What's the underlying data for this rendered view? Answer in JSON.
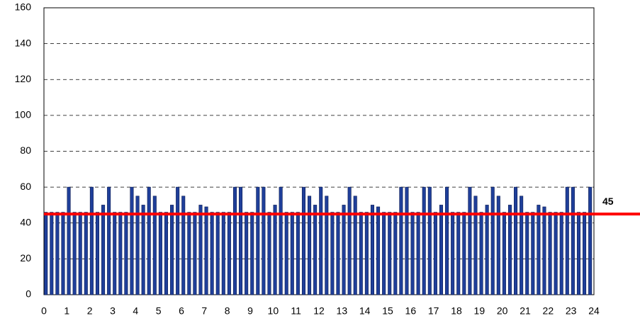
{
  "chart_data": {
    "type": "bar",
    "x": [
      0,
      0.25,
      0.5,
      0.75,
      1,
      1.25,
      1.5,
      1.75,
      2,
      2.25,
      2.5,
      2.75,
      3,
      3.25,
      3.5,
      3.75,
      4,
      4.25,
      4.5,
      4.75,
      5,
      5.25,
      5.5,
      5.75,
      6,
      6.25,
      6.5,
      6.75,
      7,
      7.25,
      7.5,
      7.75,
      8,
      8.25,
      8.5,
      8.75,
      9,
      9.25,
      9.5,
      9.75,
      10,
      10.25,
      10.5,
      10.75,
      11,
      11.25,
      11.5,
      11.75,
      12,
      12.25,
      12.5,
      12.75,
      13,
      13.25,
      13.5,
      13.75,
      14,
      14.25,
      14.5,
      14.75,
      15,
      15.25,
      15.5,
      15.75,
      16,
      16.25,
      16.5,
      16.75,
      17,
      17.25,
      17.5,
      17.75,
      18,
      18.25,
      18.5,
      18.75,
      19,
      19.25,
      19.5,
      19.75,
      20,
      20.25,
      20.5,
      20.75,
      21,
      21.25,
      21.5,
      21.75,
      22,
      22.25,
      22.5,
      22.75,
      23,
      23.25,
      23.5,
      23.75
    ],
    "values": [
      46,
      46,
      46,
      46,
      60,
      46,
      46,
      46,
      60,
      46,
      50,
      60,
      46,
      46,
      46,
      60,
      55,
      50,
      60,
      55,
      46,
      46,
      50,
      60,
      55,
      46,
      46,
      50,
      49,
      46,
      46,
      46,
      46,
      60,
      60,
      46,
      46,
      60,
      60,
      46,
      50,
      60,
      46,
      46,
      46,
      60,
      55,
      50,
      60,
      55,
      46,
      46,
      50,
      60,
      55,
      46,
      46,
      50,
      49,
      46,
      46,
      46,
      60,
      60,
      46,
      46,
      60,
      60,
      46,
      50,
      60,
      46,
      46,
      46,
      60,
      55,
      46,
      50,
      60,
      55,
      46,
      50,
      60,
      55,
      46,
      46,
      50,
      49,
      46,
      46,
      46,
      60,
      60,
      46,
      46,
      60
    ],
    "color": "#1f3f9a",
    "xlim": [
      0,
      24
    ],
    "xticks": [
      0,
      1,
      2,
      3,
      4,
      5,
      6,
      7,
      8,
      9,
      10,
      11,
      12,
      13,
      14,
      15,
      16,
      17,
      18,
      19,
      20,
      21,
      22,
      23,
      24
    ],
    "ylim": [
      0,
      160
    ],
    "yticks": [
      0,
      20,
      40,
      60,
      80,
      100,
      120,
      140,
      160
    ],
    "grid": true,
    "reference_line": {
      "value": 45,
      "color": "#ff0000"
    }
  }
}
